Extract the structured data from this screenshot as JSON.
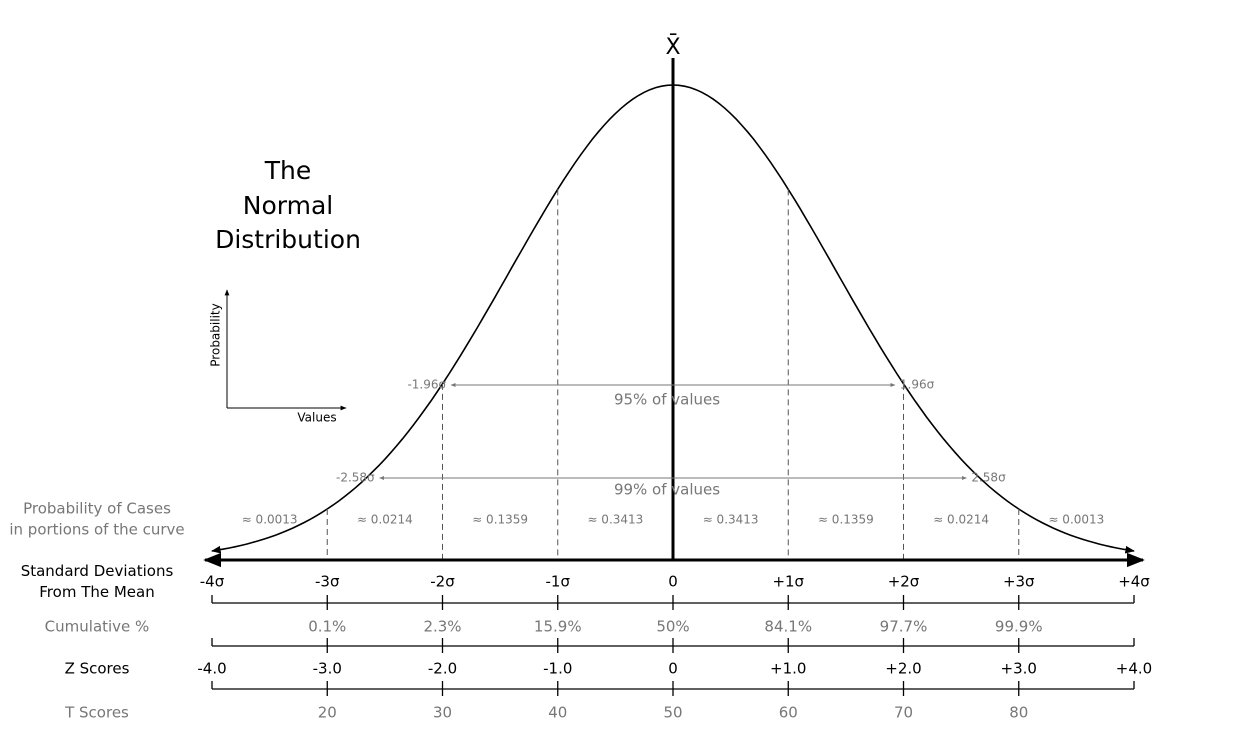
{
  "title": [
    "The",
    "Normal",
    "Distribution"
  ],
  "mean_label": "X̄",
  "axes_icon": {
    "y_label": "Probability",
    "x_label": "Values"
  },
  "intervals": [
    {
      "lower": "-1.96σ",
      "upper": "1.96σ",
      "label": "95% of values"
    },
    {
      "lower": "-2.58σ",
      "upper": "2.58σ",
      "label": "99% of values"
    }
  ],
  "probability_of_cases": {
    "label": [
      "Probability of Cases",
      "in portions of the curve"
    ],
    "values": [
      "≈ 0.0013",
      "≈ 0.0214",
      "≈ 0.1359",
      "≈ 0.3413",
      "≈ 0.3413",
      "≈ 0.1359",
      "≈ 0.0214",
      "≈ 0.0013"
    ]
  },
  "rows": [
    {
      "label": [
        "Standard Deviations",
        "From The Mean"
      ],
      "ticks": [
        "-4σ",
        "-3σ",
        "-2σ",
        "-1σ",
        "0",
        "+1σ",
        "+2σ",
        "+3σ",
        "+4σ"
      ]
    },
    {
      "label": [
        "Cumulative %"
      ],
      "ticks": [
        "0.1%",
        "2.3%",
        "15.9%",
        "50%",
        "84.1%",
        "97.7%",
        "99.9%"
      ]
    },
    {
      "label": [
        "Z Scores"
      ],
      "ticks": [
        "-4.0",
        "-3.0",
        "-2.0",
        "-1.0",
        "0",
        "+1.0",
        "+2.0",
        "+3.0",
        "+4.0"
      ]
    },
    {
      "label": [
        "T Scores"
      ],
      "ticks": [
        "20",
        "30",
        "40",
        "50",
        "60",
        "70",
        "80"
      ]
    }
  ]
}
